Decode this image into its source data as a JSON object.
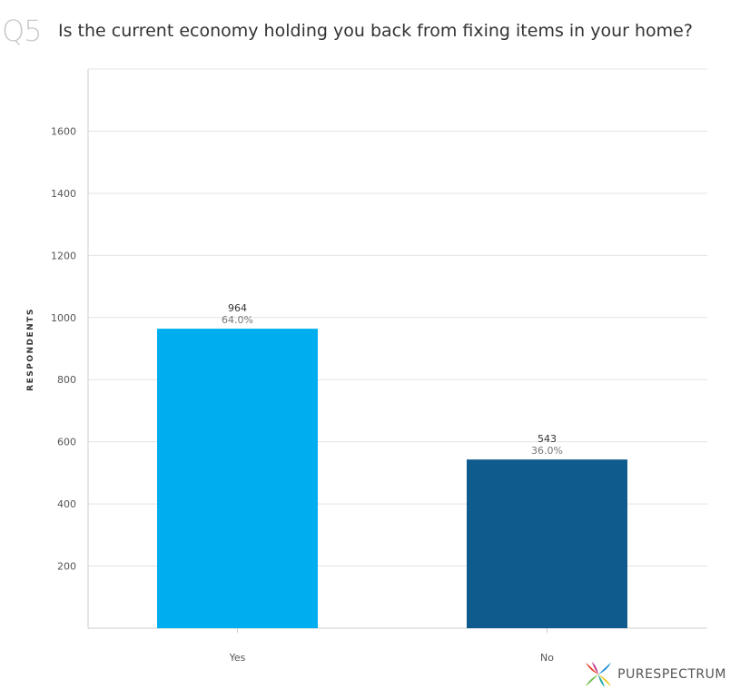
{
  "question": {
    "number": "Q5",
    "text": "Is the current economy holding you back from fixing items in your home?"
  },
  "brand": {
    "name": "PURESPECTRUM"
  },
  "chart_data": {
    "type": "bar",
    "title": "",
    "xlabel": "",
    "ylabel": "RESPONDENTS",
    "categories": [
      "Yes",
      "No"
    ],
    "values": [
      964,
      543
    ],
    "percent_labels": [
      "64.0%",
      "36.0%"
    ],
    "colors": [
      "#00aeef",
      "#0f5b8e"
    ],
    "ylim": [
      0,
      1800
    ],
    "yticks": [
      200,
      400,
      600,
      800,
      1000,
      1200,
      1400,
      1600
    ],
    "grid": true
  }
}
